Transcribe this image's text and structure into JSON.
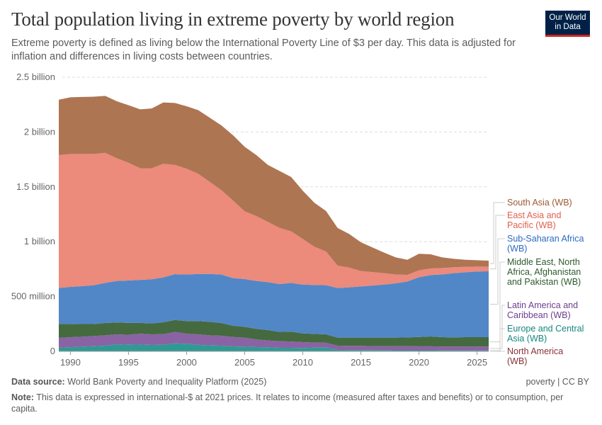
{
  "header": {
    "title": "Total population living in extreme poverty by world region",
    "subtitle": "Extreme poverty is defined as living below the International Poverty Line of $3 per day. This data is adjusted for inflation and differences in living costs between countries.",
    "logo_line1": "Our World",
    "logo_line2": "in Data"
  },
  "footer": {
    "source_label": "Data source:",
    "source_text": "World Bank Poverty and Inequality Platform (2025)",
    "license": "poverty | CC BY",
    "note_label": "Note:",
    "note_text": "This data is expressed in international-$ at 2021 prices. It relates to income (measured after taxes and benefits) or to consumption, per capita."
  },
  "chart_data": {
    "type": "area",
    "stacked": true,
    "title": "Total population living in extreme poverty by world region",
    "units": "people (millions in values)",
    "xlim": [
      1989,
      2026
    ],
    "ylim": [
      0,
      2500
    ],
    "grid": true,
    "legend_placement": "right",
    "x_ticks": [
      "1990",
      "1995",
      "2000",
      "2005",
      "2010",
      "2015",
      "2020",
      "2025"
    ],
    "x_tick_values": [
      1990,
      1995,
      2000,
      2005,
      2010,
      2015,
      2020,
      2025
    ],
    "y_ticks": [
      "0",
      "500 million",
      "1 billion",
      "1.5 billion",
      "2 billion",
      "2.5 billion"
    ],
    "y_tick_values": [
      0,
      500,
      1000,
      1500,
      2000,
      2500
    ],
    "x": [
      1989,
      1990,
      1991,
      1992,
      1993,
      1994,
      1995,
      1996,
      1997,
      1998,
      1999,
      2000,
      2001,
      2002,
      2003,
      2004,
      2005,
      2006,
      2007,
      2008,
      2009,
      2010,
      2011,
      2012,
      2013,
      2014,
      2015,
      2016,
      2017,
      2018,
      2019,
      2020,
      2021,
      2022,
      2023,
      2024,
      2025,
      2026
    ],
    "series": [
      {
        "name": "North America (WB)",
        "color": "#9b2e3b",
        "label_color": "#883039",
        "values": [
          3,
          3,
          3,
          3,
          3,
          3,
          3,
          3,
          3,
          3,
          3,
          3,
          3,
          3,
          3,
          3,
          3,
          3,
          3,
          3,
          3,
          3,
          3,
          3,
          3,
          3,
          3,
          3,
          3,
          3,
          3,
          3,
          3,
          3,
          3,
          3,
          3,
          3
        ]
      },
      {
        "name": "Europe and Central Asia (WB)",
        "color": "#2f9a94",
        "label_color": "#17867f",
        "values": [
          31,
          35,
          40,
          44,
          49,
          62,
          57,
          59,
          55,
          57,
          70,
          66,
          57,
          51,
          49,
          42,
          40,
          36,
          34,
          29,
          29,
          27,
          31,
          31,
          10,
          9,
          9,
          8,
          8,
          7,
          7,
          7,
          7,
          6,
          6,
          6,
          5,
          5
        ]
      },
      {
        "name": "Latin America and Caribbean (WB)",
        "color": "#8a63a4",
        "label_color": "#6d3e91",
        "values": [
          89,
          91,
          90,
          93,
          94,
          90,
          91,
          99,
          97,
          97,
          104,
          92,
          95,
          92,
          90,
          86,
          82,
          69,
          62,
          61,
          58,
          54,
          46,
          44,
          39,
          38,
          38,
          37,
          36,
          37,
          37,
          36,
          36,
          35,
          35,
          35,
          36,
          36
        ]
      },
      {
        "name": "Middle East, North Africa, Afghanistan and Pakistan (WB)",
        "color": "#456a3f",
        "label_color": "#2c5a2c",
        "values": [
          127,
          121,
          116,
          109,
          112,
          108,
          108,
          98,
          99,
          108,
          109,
          115,
          121,
          123,
          116,
          102,
          99,
          97,
          95,
          84,
          89,
          80,
          79,
          77,
          73,
          75,
          75,
          77,
          78,
          78,
          80,
          85,
          90,
          85,
          83,
          85,
          85,
          85
        ]
      },
      {
        "name": "Sub-Saharan Africa (WB)",
        "color": "#5187c7",
        "label_color": "#2c6ac3",
        "values": [
          327,
          338,
          345,
          354,
          366,
          379,
          387,
          393,
          403,
          409,
          418,
          424,
          430,
          437,
          442,
          435,
          435,
          437,
          437,
          437,
          445,
          445,
          446,
          448,
          452,
          459,
          467,
          475,
          484,
          495,
          510,
          545,
          559,
          573,
          586,
          592,
          599,
          601
        ]
      },
      {
        "name": "East Asia and Pacific (WB)",
        "color": "#ec8a7b",
        "label_color": "#e0604e",
        "values": [
          1213,
          1212,
          1206,
          1197,
          1186,
          1118,
          1074,
          1018,
          1013,
          1036,
          996,
          965,
          914,
          839,
          770,
          707,
          618,
          592,
          549,
          512,
          470,
          416,
          349,
          308,
          205,
          180,
          140,
          123,
          104,
          80,
          61,
          63,
          61,
          58,
          54,
          50,
          45,
          43
        ]
      },
      {
        "name": "South Asia (WB)",
        "color": "#ae7552",
        "label_color": "#9d5a35",
        "values": [
          505,
          517,
          520,
          522,
          520,
          520,
          525,
          537,
          545,
          560,
          565,
          570,
          580,
          585,
          590,
          595,
          588,
          556,
          520,
          519,
          496,
          440,
          401,
          369,
          343,
          306,
          263,
          224,
          187,
          157,
          137,
          151,
          129,
          97,
          77,
          64,
          58,
          54
        ]
      }
    ]
  }
}
